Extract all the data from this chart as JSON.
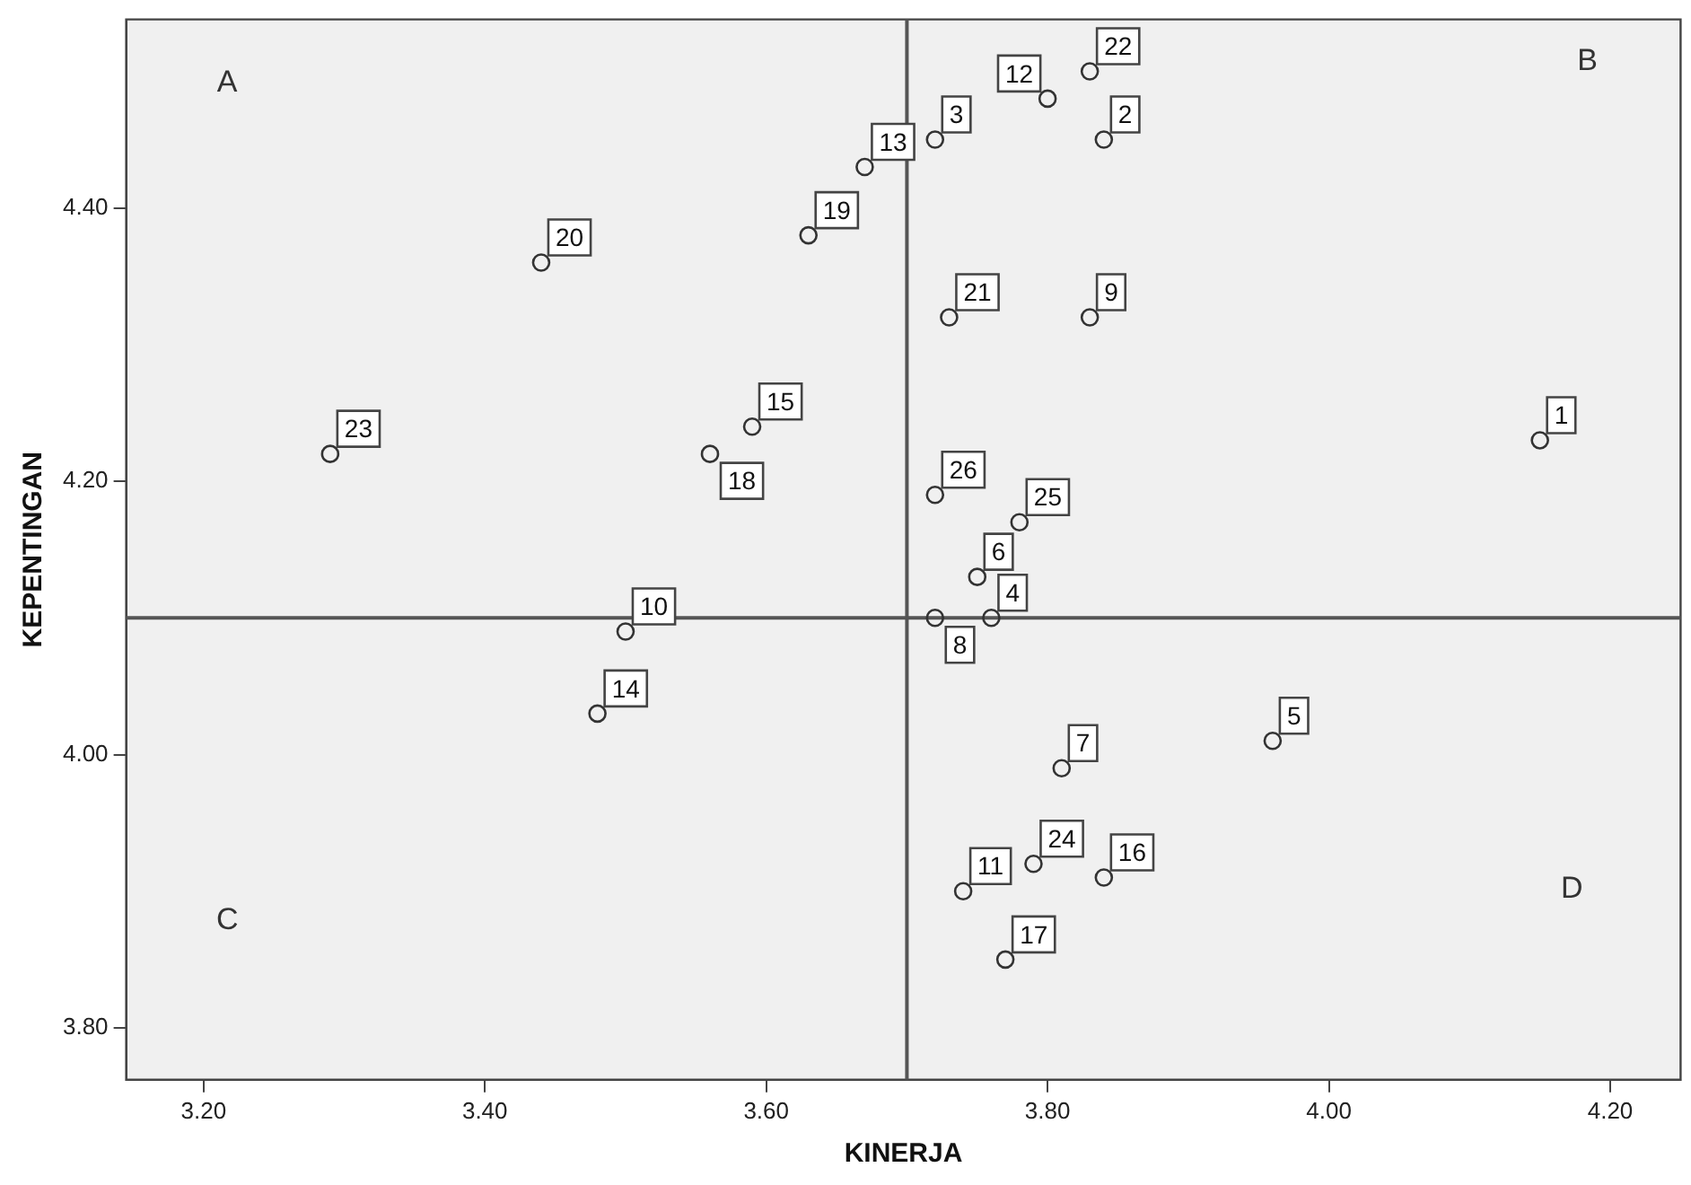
{
  "chart_data": {
    "type": "scatter",
    "xlabel": "KINERJA",
    "ylabel": "KEPENTINGAN",
    "x": [
      4.15,
      3.84,
      3.72,
      3.76,
      3.96,
      3.75,
      3.81,
      3.72,
      3.83,
      3.5,
      3.74,
      3.8,
      3.67,
      3.48,
      3.59,
      3.84,
      3.77,
      3.56,
      3.63,
      3.44,
      3.73,
      3.83,
      3.29,
      3.79,
      3.78,
      3.72
    ],
    "series": [
      {
        "color": "#333333",
        "values": [
          4.23,
          4.45,
          4.45,
          4.1,
          4.01,
          4.13,
          3.99,
          4.1,
          4.32,
          4.09,
          3.9,
          4.48,
          4.43,
          4.03,
          4.24,
          3.91,
          3.85,
          4.22,
          4.38,
          4.36,
          4.32,
          4.5,
          4.22,
          3.92,
          4.17,
          4.19
        ]
      }
    ],
    "xlim": [
      3.145,
      4.25
    ],
    "xticks": [
      {
        "value": 3.2,
        "label": "3.20"
      },
      {
        "value": 3.4,
        "label": "3.40"
      },
      {
        "value": 3.6,
        "label": "3.60"
      },
      {
        "value": 3.8,
        "label": "3.80"
      },
      {
        "value": 4.0,
        "label": "4.00"
      },
      {
        "value": 4.2,
        "label": "4.20"
      }
    ],
    "ylim": [
      3.762,
      4.538
    ],
    "yticks": [
      {
        "value": 3.8,
        "label": "3.80"
      },
      {
        "value": 4.0,
        "label": "4.00"
      },
      {
        "value": 4.2,
        "label": "4.20"
      },
      {
        "value": 4.4,
        "label": "4.40"
      }
    ],
    "ref_lines": [
      {
        "axis": "x",
        "value": 3.7,
        "color": "#555555"
      },
      {
        "axis": "y",
        "value": 4.1,
        "color": "#555555"
      }
    ],
    "annotations": [
      "A",
      "B",
      "C",
      "D",
      {
        "text": "1",
        "x": 4.15,
        "y": 4.23
      },
      {
        "text": "2",
        "x": 3.84,
        "y": 4.45
      },
      {
        "text": "3",
        "x": 3.72,
        "y": 4.45
      },
      {
        "text": "4",
        "x": 3.76,
        "y": 4.1
      },
      {
        "text": "5",
        "x": 3.96,
        "y": 4.01
      },
      {
        "text": "6",
        "x": 3.75,
        "y": 4.13
      },
      {
        "text": "7",
        "x": 3.81,
        "y": 3.99
      },
      {
        "text": "8",
        "x": 3.72,
        "y": 4.1
      },
      {
        "text": "9",
        "x": 3.83,
        "y": 4.32
      },
      {
        "text": "10",
        "x": 3.5,
        "y": 4.09
      },
      {
        "text": "11",
        "x": 3.74,
        "y": 3.9
      },
      {
        "text": "12",
        "x": 3.8,
        "y": 4.48
      },
      {
        "text": "13",
        "x": 3.67,
        "y": 4.43
      },
      {
        "text": "14",
        "x": 3.48,
        "y": 4.03
      },
      {
        "text": "15",
        "x": 3.59,
        "y": 4.24
      },
      {
        "text": "16",
        "x": 3.84,
        "y": 3.91
      },
      {
        "text": "17",
        "x": 3.77,
        "y": 3.85
      },
      {
        "text": "18",
        "x": 3.56,
        "y": 4.22
      },
      {
        "text": "19",
        "x": 3.63,
        "y": 4.38
      },
      {
        "text": "20",
        "x": 3.44,
        "y": 4.36
      },
      {
        "text": "21",
        "x": 3.73,
        "y": 4.32
      },
      {
        "text": "22",
        "x": 3.83,
        "y": 4.5
      },
      {
        "text": "23",
        "x": 3.29,
        "y": 4.22
      },
      {
        "text": "24",
        "x": 3.79,
        "y": 3.92
      },
      {
        "text": "25",
        "x": 3.78,
        "y": 4.17
      },
      {
        "text": "26",
        "x": 3.72,
        "y": 4.19
      }
    ],
    "grid": false,
    "legend": false,
    "marker": "circle"
  }
}
